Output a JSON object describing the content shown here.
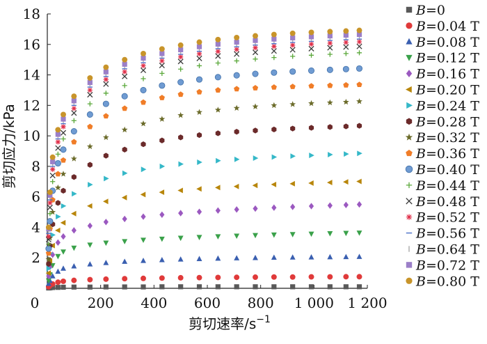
{
  "chart_data": {
    "type": "scatter",
    "xlabel": "剪切速率/s",
    "xlabel_sup": "−1",
    "ylabel": "剪切应力/kPa",
    "xlim": [
      0,
      1200
    ],
    "ylim": [
      0,
      18
    ],
    "x_ticks": [
      0,
      200,
      400,
      600,
      800,
      1000,
      1200
    ],
    "x_tick_labels": [
      "0",
      "200",
      "400",
      "600",
      "800",
      "1 000",
      "1 200"
    ],
    "y_ticks": [
      2,
      4,
      6,
      8,
      10,
      12,
      14,
      16,
      18
    ],
    "y_tick_labels": [
      "2",
      "4",
      "6",
      "8",
      "10",
      "12",
      "14",
      "16",
      "18"
    ],
    "legend_position": "right",
    "x": [
      5,
      10,
      20,
      40,
      60,
      100,
      160,
      220,
      290,
      360,
      430,
      500,
      570,
      640,
      710,
      780,
      850,
      920,
      990,
      1060,
      1120,
      1170
    ],
    "series": [
      {
        "name": "B=0",
        "label_var": "B",
        "label_rest": "=0",
        "marker": "square",
        "color": "#595959",
        "values": [
          0.02,
          0.03,
          0.05,
          0.06,
          0.07,
          0.08,
          0.08,
          0.09,
          0.09,
          0.09,
          0.1,
          0.1,
          0.1,
          0.1,
          0.1,
          0.1,
          0.1,
          0.1,
          0.1,
          0.1,
          0.1,
          0.1
        ]
      },
      {
        "name": "B=0.04 T",
        "label_var": "B",
        "label_rest": "=0.04 T",
        "marker": "circle",
        "color": "#e03a3a",
        "values": [
          0.1,
          0.18,
          0.28,
          0.4,
          0.46,
          0.52,
          0.57,
          0.6,
          0.63,
          0.65,
          0.67,
          0.69,
          0.7,
          0.71,
          0.72,
          0.73,
          0.74,
          0.74,
          0.75,
          0.75,
          0.76,
          0.76
        ]
      },
      {
        "name": "B=0.08 T",
        "label_var": "B",
        "label_rest": "=0.08 T",
        "marker": "triangle-up",
        "color": "#3a5fb0",
        "values": [
          0.3,
          0.5,
          0.8,
          1.1,
          1.3,
          1.45,
          1.58,
          1.67,
          1.75,
          1.81,
          1.86,
          1.9,
          1.93,
          1.96,
          1.98,
          2.0,
          2.02,
          2.03,
          2.04,
          2.05,
          2.06,
          2.07
        ]
      },
      {
        "name": "B=0.12 T",
        "label_var": "B",
        "label_rest": "=0.12 T",
        "marker": "triangle-down",
        "color": "#3aa14a",
        "values": [
          0.5,
          0.9,
          1.5,
          2.1,
          2.4,
          2.65,
          2.85,
          2.98,
          3.08,
          3.17,
          3.24,
          3.3,
          3.35,
          3.4,
          3.44,
          3.48,
          3.51,
          3.54,
          3.57,
          3.6,
          3.62,
          3.64
        ]
      },
      {
        "name": "B=0.16 T",
        "label_var": "B",
        "label_rest": "=0.16 T",
        "marker": "diamond",
        "color": "#9b59c0",
        "values": [
          0.8,
          1.4,
          2.2,
          3.0,
          3.4,
          3.8,
          4.1,
          4.35,
          4.55,
          4.7,
          4.83,
          4.93,
          5.02,
          5.1,
          5.17,
          5.23,
          5.29,
          5.34,
          5.39,
          5.43,
          5.47,
          5.5
        ]
      },
      {
        "name": "B=0.20 T",
        "label_var": "B",
        "label_rest": "=0.20 T",
        "marker": "triangle-left",
        "color": "#b8860b",
        "values": [
          1.0,
          1.8,
          2.8,
          3.8,
          4.3,
          4.9,
          5.4,
          5.7,
          5.95,
          6.15,
          6.3,
          6.42,
          6.52,
          6.61,
          6.68,
          6.75,
          6.81,
          6.86,
          6.9,
          6.94,
          6.98,
          7.01
        ]
      },
      {
        "name": "B=0.24 T",
        "label_var": "B",
        "label_rest": "=0.24 T",
        "marker": "triangle-right",
        "color": "#35b8c8",
        "values": [
          1.3,
          2.3,
          3.5,
          4.7,
          5.4,
          6.2,
          6.8,
          7.2,
          7.55,
          7.8,
          8.0,
          8.15,
          8.27,
          8.37,
          8.46,
          8.54,
          8.61,
          8.67,
          8.72,
          8.77,
          8.81,
          8.85
        ]
      },
      {
        "name": "B=0.28 T",
        "label_var": "B",
        "label_rest": "=0.28 T",
        "marker": "hexagon",
        "color": "#6b2a2a",
        "values": [
          1.6,
          2.8,
          4.2,
          5.6,
          6.4,
          7.3,
          8.1,
          8.7,
          9.1,
          9.45,
          9.7,
          9.9,
          10.05,
          10.17,
          10.27,
          10.35,
          10.42,
          10.48,
          10.53,
          10.58,
          10.62,
          10.66
        ]
      },
      {
        "name": "B=0.32 T",
        "label_var": "B",
        "label_rest": "=0.32 T",
        "marker": "star",
        "color": "#6b6b2a",
        "values": [
          1.9,
          3.3,
          5.0,
          6.6,
          7.5,
          8.5,
          9.3,
          9.9,
          10.4,
          10.8,
          11.1,
          11.35,
          11.55,
          11.7,
          11.82,
          11.92,
          12.0,
          12.07,
          12.13,
          12.18,
          12.22,
          12.26
        ]
      },
      {
        "name": "B=0.36 T",
        "label_var": "B",
        "label_rest": "=0.36 T",
        "marker": "pentagon",
        "color": "#f07d28",
        "values": [
          2.3,
          3.9,
          5.8,
          7.5,
          8.4,
          9.6,
          10.6,
          11.3,
          11.8,
          12.2,
          12.5,
          12.72,
          12.88,
          13.0,
          13.08,
          13.14,
          13.19,
          13.23,
          13.27,
          13.3,
          13.33,
          13.36
        ]
      },
      {
        "name": "B=0.40 T",
        "label_var": "B",
        "label_rest": "=0.40 T",
        "marker": "sphere",
        "color": "#6f9bd2",
        "values": [
          2.6,
          4.4,
          6.4,
          8.2,
          9.1,
          10.3,
          11.4,
          12.1,
          12.6,
          13.0,
          13.3,
          13.52,
          13.7,
          13.85,
          13.97,
          14.07,
          14.15,
          14.22,
          14.28,
          14.33,
          14.38,
          14.42
        ]
      },
      {
        "name": "B=0.44 T",
        "label_var": "B",
        "label_rest": "=0.44 T",
        "marker": "plus",
        "color": "#5aa83a",
        "values": [
          2.9,
          4.9,
          7.0,
          8.8,
          9.8,
          11.0,
          12.1,
          12.8,
          13.3,
          13.75,
          14.1,
          14.38,
          14.6,
          14.78,
          14.92,
          15.04,
          15.14,
          15.22,
          15.29,
          15.35,
          15.4,
          15.45
        ]
      },
      {
        "name": "B=0.48 T",
        "label_var": "B",
        "label_rest": "=0.48 T",
        "marker": "x",
        "color": "#3a3a3a",
        "values": [
          3.2,
          5.3,
          7.4,
          9.2,
          10.2,
          11.5,
          12.7,
          13.4,
          13.9,
          14.3,
          14.62,
          14.88,
          15.08,
          15.24,
          15.37,
          15.48,
          15.57,
          15.65,
          15.72,
          15.78,
          15.83,
          15.87
        ]
      },
      {
        "name": "B=0.52 T",
        "label_var": "B",
        "label_rest": "=0.52 T",
        "marker": "asterisk",
        "color": "#e0304a",
        "values": [
          3.4,
          5.6,
          7.8,
          9.6,
          10.6,
          11.8,
          13.0,
          13.7,
          14.2,
          14.6,
          14.92,
          15.18,
          15.38,
          15.54,
          15.67,
          15.78,
          15.87,
          15.95,
          16.02,
          16.08,
          16.13,
          16.17
        ]
      },
      {
        "name": "B=0.56 T",
        "label_var": "B",
        "label_rest": "=0.56 T",
        "marker": "hline",
        "color": "#4a6fc8",
        "values": [
          3.6,
          5.8,
          8.0,
          9.8,
          10.8,
          12.0,
          13.2,
          13.9,
          14.4,
          14.8,
          15.1,
          15.35,
          15.55,
          15.72,
          15.85,
          15.96,
          16.05,
          16.13,
          16.2,
          16.26,
          16.31,
          16.35
        ]
      },
      {
        "name": "B=0.64 T",
        "label_var": "B",
        "label_rest": "=0.64 T",
        "marker": "vline",
        "color": "#a8a8a8",
        "values": [
          3.8,
          6.0,
          8.2,
          10.0,
          11.0,
          12.2,
          13.4,
          14.1,
          14.6,
          15.0,
          15.3,
          15.55,
          15.75,
          15.92,
          16.05,
          16.16,
          16.25,
          16.33,
          16.4,
          16.46,
          16.51,
          16.55
        ]
      },
      {
        "name": "B=0.72 T",
        "label_var": "B",
        "label_rest": "=0.72 T",
        "marker": "square",
        "color": "#9b7fc8",
        "values": [
          3.9,
          6.1,
          8.3,
          10.1,
          11.1,
          12.3,
          13.5,
          14.2,
          14.7,
          15.1,
          15.4,
          15.65,
          15.85,
          16.02,
          16.15,
          16.26,
          16.35,
          16.43,
          16.5,
          16.56,
          16.61,
          16.65
        ]
      },
      {
        "name": "B=0.80 T",
        "label_var": "B",
        "label_rest": "=0.80 T",
        "marker": "circle",
        "color": "#c8942a",
        "values": [
          4.0,
          6.3,
          8.6,
          10.4,
          11.4,
          12.6,
          13.8,
          14.5,
          15.0,
          15.4,
          15.7,
          15.95,
          16.15,
          16.32,
          16.45,
          16.56,
          16.65,
          16.73,
          16.79,
          16.84,
          16.88,
          16.92
        ]
      }
    ]
  }
}
